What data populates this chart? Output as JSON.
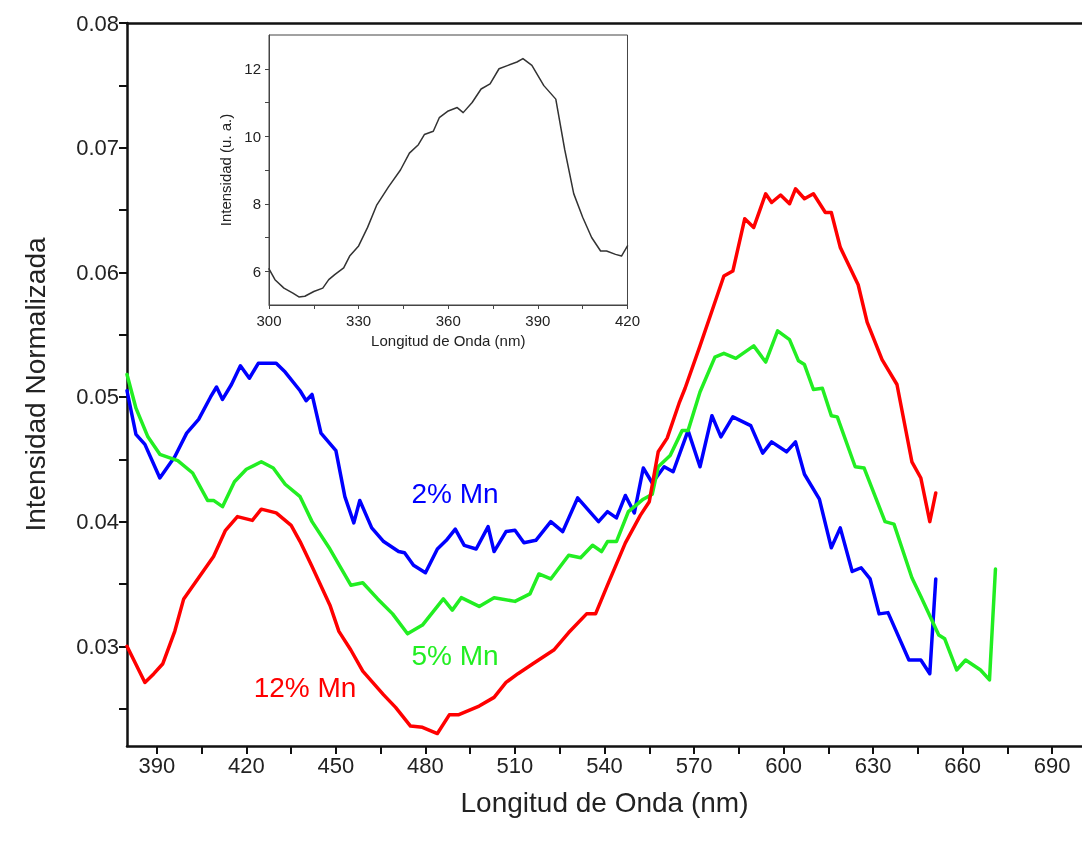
{
  "chart_data": [
    {
      "type": "line",
      "xlabel": "Longitud de Onda (nm)",
      "ylabel": "Intensidad Normalizada",
      "xlim": [
        380,
        700
      ],
      "ylim": [
        0.022,
        0.08
      ],
      "xticks": [
        390,
        {
          "value": 405,
          "label": null
        },
        420,
        {
          "value": 435,
          "label": null
        },
        450,
        {
          "value": 465,
          "label": null
        },
        480,
        {
          "value": 495,
          "label": null
        },
        510,
        {
          "value": 525,
          "label": null
        },
        540,
        {
          "value": 555,
          "label": null
        },
        570,
        {
          "value": 585,
          "label": null
        },
        600,
        {
          "value": 615,
          "label": null
        },
        630,
        {
          "value": 645,
          "label": null
        },
        660,
        {
          "value": 675,
          "label": null
        },
        690
      ],
      "yticks": [
        {
          "value": 0.025,
          "label": null
        },
        0.03,
        {
          "value": 0.035,
          "label": null
        },
        0.04,
        {
          "value": 0.045,
          "label": null
        },
        0.05,
        {
          "value": 0.055,
          "label": null
        },
        0.06,
        {
          "value": 0.065,
          "label": null
        },
        0.07,
        {
          "value": 0.075,
          "label": null
        },
        0.08
      ],
      "series": [
        {
          "name": "2% Mn",
          "color": "#0000ff",
          "x": [
            380,
            383,
            386,
            391,
            396,
            400,
            404,
            408,
            410,
            412,
            415,
            418,
            421,
            424,
            430,
            433,
            438,
            440,
            442,
            445,
            450,
            453,
            456,
            458,
            462,
            466,
            471,
            473,
            476,
            480,
            484,
            487,
            490,
            493,
            497,
            501,
            503,
            507,
            510,
            513,
            517,
            522,
            526,
            531,
            538,
            541,
            544,
            547,
            550,
            553,
            556,
            560,
            563,
            568,
            572,
            576,
            579,
            583,
            589,
            593,
            596,
            601,
            604,
            607,
            612,
            616,
            619,
            623,
            626,
            629,
            632,
            635,
            642,
            646,
            649,
            651
          ],
          "values": [
            0.0505,
            0.047,
            0.0462,
            0.0435,
            0.0452,
            0.0471,
            0.0482,
            0.05,
            0.0508,
            0.0498,
            0.051,
            0.0525,
            0.0515,
            0.0527,
            0.0527,
            0.052,
            0.0505,
            0.0497,
            0.0502,
            0.0471,
            0.0457,
            0.042,
            0.0399,
            0.0417,
            0.0395,
            0.0384,
            0.0376,
            0.0375,
            0.0365,
            0.0359,
            0.0378,
            0.0385,
            0.0394,
            0.0381,
            0.0378,
            0.0396,
            0.0376,
            0.0392,
            0.0393,
            0.0383,
            0.0385,
            0.04,
            0.0392,
            0.0419,
            0.04,
            0.0408,
            0.0403,
            0.0421,
            0.0407,
            0.0443,
            0.0431,
            0.0444,
            0.044,
            0.0473,
            0.0444,
            0.0485,
            0.0468,
            0.0484,
            0.0477,
            0.0455,
            0.0464,
            0.0456,
            0.0464,
            0.0438,
            0.0418,
            0.0379,
            0.0395,
            0.036,
            0.0363,
            0.0354,
            0.0326,
            0.0327,
            0.0289,
            0.0289,
            0.0278,
            0.0354
          ]
        },
        {
          "name": "5% Mn",
          "color": "#22ee22",
          "x": [
            380,
            383,
            387,
            391,
            397,
            402,
            407,
            409,
            412,
            416,
            420,
            425,
            429,
            433,
            438,
            442,
            448,
            455,
            459,
            464,
            469,
            474,
            479,
            486,
            489,
            492,
            498,
            503,
            510,
            515,
            518,
            522,
            528,
            532,
            536,
            539,
            541,
            544,
            548,
            553,
            556,
            558,
            562,
            566,
            568,
            572,
            577,
            580,
            584,
            590,
            594,
            598,
            602,
            605,
            607,
            610,
            613,
            616,
            618,
            624,
            627,
            634,
            637,
            643,
            646,
            652,
            654,
            658,
            661,
            666,
            669,
            671
          ],
          "values": [
            0.0518,
            0.0491,
            0.0468,
            0.0454,
            0.0449,
            0.0439,
            0.0417,
            0.0417,
            0.0412,
            0.0432,
            0.0442,
            0.0448,
            0.0443,
            0.043,
            0.042,
            0.04,
            0.0378,
            0.0349,
            0.0351,
            0.0338,
            0.0326,
            0.031,
            0.0317,
            0.0338,
            0.0329,
            0.0339,
            0.0332,
            0.0339,
            0.0336,
            0.0342,
            0.0358,
            0.0354,
            0.0373,
            0.0371,
            0.0381,
            0.0376,
            0.0384,
            0.0384,
            0.0408,
            0.0418,
            0.0422,
            0.0444,
            0.0453,
            0.0473,
            0.0473,
            0.0504,
            0.0532,
            0.0535,
            0.0531,
            0.0541,
            0.0528,
            0.0553,
            0.0546,
            0.0529,
            0.0526,
            0.0506,
            0.0507,
            0.0485,
            0.0484,
            0.0444,
            0.0443,
            0.04,
            0.0398,
            0.0355,
            0.034,
            0.0309,
            0.0306,
            0.0281,
            0.0289,
            0.0281,
            0.0273,
            0.0362
          ]
        },
        {
          "name": "12% Mn",
          "color": "#ff0000",
          "x": [
            380,
            386,
            389,
            392,
            396,
            399,
            404,
            409,
            413,
            417,
            422,
            425,
            430,
            435,
            438,
            442,
            448,
            451,
            455,
            459,
            466,
            470,
            475,
            479,
            484,
            488,
            491,
            498,
            503,
            507,
            511,
            516,
            523,
            528,
            534,
            537,
            541,
            547,
            552,
            555,
            558,
            561,
            565,
            567,
            572,
            576,
            580,
            583,
            587,
            590,
            594,
            596,
            599,
            602,
            604,
            607,
            610,
            614,
            616,
            619,
            625,
            628,
            633,
            638,
            643,
            646,
            649,
            651
          ],
          "values": [
            0.03,
            0.0271,
            0.0278,
            0.0286,
            0.0312,
            0.0338,
            0.0355,
            0.0372,
            0.0393,
            0.0404,
            0.0401,
            0.041,
            0.0407,
            0.0397,
            0.0384,
            0.0364,
            0.0333,
            0.0312,
            0.0297,
            0.028,
            0.0261,
            0.0251,
            0.0236,
            0.0235,
            0.023,
            0.0245,
            0.0245,
            0.0252,
            0.0259,
            0.0271,
            0.0278,
            0.0286,
            0.0297,
            0.0311,
            0.0326,
            0.0326,
            0.0349,
            0.0383,
            0.0405,
            0.0416,
            0.0456,
            0.0467,
            0.0495,
            0.0507,
            0.0541,
            0.0569,
            0.0597,
            0.0601,
            0.0643,
            0.0636,
            0.0663,
            0.0656,
            0.0662,
            0.0655,
            0.0667,
            0.0659,
            0.0663,
            0.0648,
            0.0648,
            0.062,
            0.059,
            0.056,
            0.053,
            0.051,
            0.0448,
            0.0435,
            0.04,
            0.0423
          ]
        }
      ]
    },
    {
      "type": "line",
      "xlabel": "Longitud de Onda (nm)",
      "ylabel": "Intensidad (u. a.)",
      "xlim": [
        300,
        420
      ],
      "ylim": [
        5,
        13
      ],
      "xticks": [
        300,
        {
          "value": 315,
          "label": null
        },
        330,
        {
          "value": 345,
          "label": null
        },
        360,
        {
          "value": 375,
          "label": null
        },
        390,
        {
          "value": 405,
          "label": null
        },
        420
      ],
      "yticks": [
        6,
        {
          "value": 7,
          "label": null
        },
        8,
        {
          "value": 9,
          "label": null
        },
        10,
        {
          "value": 11,
          "label": null
        },
        12
      ],
      "series": [
        {
          "color": "#333333",
          "x": [
            300,
            302,
            305,
            308,
            310,
            312,
            315,
            318,
            320,
            322,
            325,
            327,
            330,
            333,
            336,
            340,
            344,
            347,
            350,
            352,
            355,
            357,
            360,
            363,
            365,
            368,
            371,
            374,
            377,
            380,
            383,
            385,
            388,
            392,
            396,
            399,
            402,
            405,
            408,
            411,
            413,
            416,
            418,
            420
          ],
          "values": [
            6.07,
            5.75,
            5.5,
            5.35,
            5.24,
            5.26,
            5.4,
            5.5,
            5.75,
            5.9,
            6.1,
            6.45,
            6.75,
            7.3,
            7.95,
            8.5,
            9.0,
            9.5,
            9.75,
            10.05,
            10.15,
            10.55,
            10.75,
            10.85,
            10.7,
            11.0,
            11.4,
            11.55,
            12.0,
            12.1,
            12.2,
            12.3,
            12.1,
            11.5,
            11.1,
            9.6,
            8.3,
            7.6,
            7.0,
            6.6,
            6.6,
            6.5,
            6.45,
            6.75
          ]
        }
      ]
    }
  ]
}
